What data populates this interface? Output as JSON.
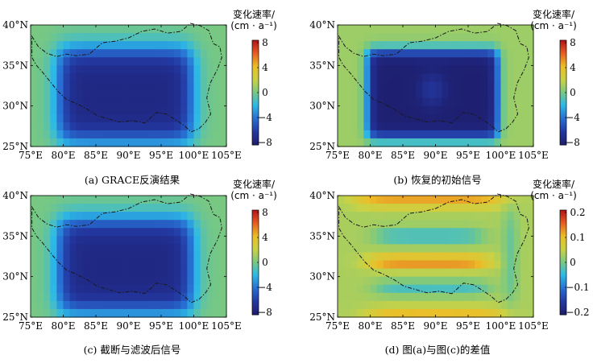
{
  "panels": [
    {
      "id": "a",
      "caption": "(a) GRACE反演结果",
      "colorbar_title": [
        "变化速率/",
        "(cm · a⁻¹)"
      ],
      "colorbar_ticks": [
        "8",
        "4",
        "0",
        "−4",
        "−8"
      ],
      "colorbar_range": [
        -8,
        8
      ],
      "xticks": [
        "75°E",
        "80°E",
        "85°E",
        "90°E",
        "95°E",
        "100°E",
        "105°E"
      ],
      "yticks": [
        "40°N",
        "35°N",
        "30°N",
        "25°N"
      ]
    },
    {
      "id": "b",
      "caption": "(b) 恢复的初始信号",
      "colorbar_title": [
        "变化速率/",
        "(cm · a⁻¹)"
      ],
      "colorbar_ticks": [
        "8",
        "4",
        "0",
        "−4",
        "−8"
      ],
      "colorbar_range": [
        -8,
        8
      ],
      "xticks": [
        "75°E",
        "80°E",
        "85°E",
        "90°E",
        "95°E",
        "100°E",
        "105°E"
      ],
      "yticks": [
        "40°N",
        "35°N",
        "30°N",
        "25°N"
      ]
    },
    {
      "id": "c",
      "caption": "(c) 截断与滤波后信号",
      "colorbar_title": [
        "变化速率/",
        "(cm · a⁻¹)"
      ],
      "colorbar_ticks": [
        "8",
        "4",
        "0",
        "−4",
        "−8"
      ],
      "colorbar_range": [
        -8,
        8
      ],
      "xticks": [
        "75°E",
        "80°E",
        "85°E",
        "90°E",
        "95°E",
        "100°E",
        "105°E"
      ],
      "yticks": [
        "40°N",
        "35°N",
        "30°N",
        "25°N"
      ]
    },
    {
      "id": "d",
      "caption": "(d)  图(a)与图(c)的差值",
      "colorbar_title": [
        "变化速率/",
        "(cm · a⁻¹)"
      ],
      "colorbar_ticks": [
        "0.2",
        "0.1",
        "0",
        "−0.1",
        "−0.2"
      ],
      "colorbar_range": [
        -0.2,
        0.2
      ],
      "xticks": [
        "75°E",
        "80°E",
        "85°E",
        "90°E",
        "95°E",
        "100°E",
        "105°E"
      ],
      "yticks": [
        "40°N",
        "35°N",
        "30°N",
        "25°N"
      ]
    }
  ],
  "chart_data": [
    {
      "type": "heatmap",
      "title": "(a) GRACE反演结果",
      "colorbar_label": "变化速率/(cm·a⁻¹)",
      "x_range": [
        75,
        105
      ],
      "y_range": [
        25,
        40
      ],
      "x_ticks": [
        75,
        80,
        85,
        90,
        95,
        100,
        105
      ],
      "y_ticks": [
        25,
        30,
        35,
        40
      ],
      "clim": [
        -8,
        8
      ],
      "grid_step_deg": 1,
      "description_values": {
        "background": 0,
        "core_min": -7,
        "box_lon": [
          79,
          100
        ],
        "box_lat": [
          26,
          37
        ]
      }
    },
    {
      "type": "heatmap",
      "title": "(b) 恢复的初始信号",
      "colorbar_label": "变化速率/(cm·a⁻¹)",
      "x_range": [
        75,
        105
      ],
      "y_range": [
        25,
        40
      ],
      "x_ticks": [
        75,
        80,
        85,
        90,
        95,
        100,
        105
      ],
      "y_ticks": [
        25,
        30,
        35,
        40
      ],
      "clim": [
        -8,
        8
      ],
      "grid_step_deg": 1,
      "description_values": {
        "background": 0.5,
        "core_min": -7.8,
        "center_value": -6.5,
        "box_lon": [
          79,
          100
        ],
        "box_lat": [
          26,
          37
        ]
      }
    },
    {
      "type": "heatmap",
      "title": "(c) 截断与滤波后信号",
      "colorbar_label": "变化速率/(cm·a⁻¹)",
      "x_range": [
        75,
        105
      ],
      "y_range": [
        25,
        40
      ],
      "x_ticks": [
        75,
        80,
        85,
        90,
        95,
        100,
        105
      ],
      "y_ticks": [
        25,
        30,
        35,
        40
      ],
      "clim": [
        -8,
        8
      ],
      "grid_step_deg": 1,
      "description_values": {
        "background": 0,
        "core_min": -7,
        "box_lon": [
          79,
          100
        ],
        "box_lat": [
          26,
          37
        ]
      }
    },
    {
      "type": "heatmap",
      "title": "(d) 图(a)与图(c)的差值",
      "colorbar_label": "变化速率/(cm·a⁻¹)",
      "x_range": [
        75,
        105
      ],
      "y_range": [
        25,
        40
      ],
      "x_ticks": [
        75,
        80,
        85,
        90,
        95,
        100,
        105
      ],
      "y_ticks": [
        25,
        30,
        35,
        40
      ],
      "clim": [
        -0.2,
        0.2
      ],
      "grid_step_deg": 1,
      "description_values": {
        "background": 0.02,
        "band_max": 0.12,
        "band_min": -0.07
      }
    }
  ]
}
